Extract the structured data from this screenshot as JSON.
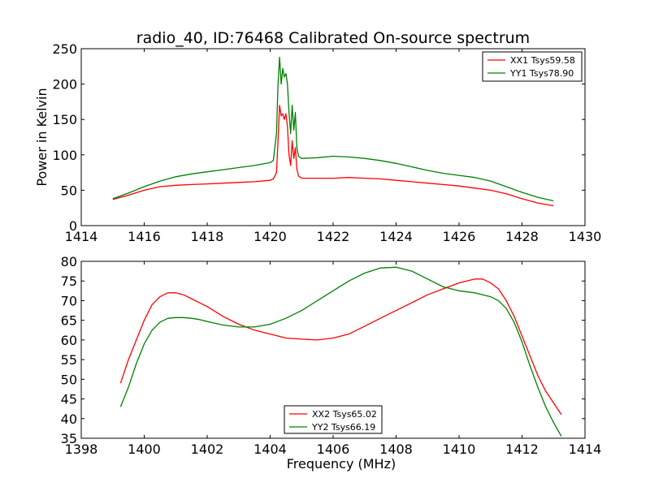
{
  "title": "radio_40, ID:76468 Calibrated On-source spectrum",
  "chart_data": [
    {
      "type": "line",
      "title": "radio_40, ID:76468 Calibrated On-source spectrum",
      "xlabel": "",
      "ylabel": "Power in Kelvin",
      "xlim": [
        1414,
        1430
      ],
      "ylim": [
        0,
        250
      ],
      "xticks": [
        1414,
        1416,
        1418,
        1420,
        1422,
        1424,
        1426,
        1428,
        1430
      ],
      "yticks": [
        0,
        50,
        100,
        150,
        200,
        250
      ],
      "grid": false,
      "legend_position": "upper right",
      "series": [
        {
          "name": "XX1 Tsys59.58",
          "color": "#ff0000",
          "x": [
            1415.0,
            1415.5,
            1416.0,
            1416.5,
            1417.0,
            1417.5,
            1418.0,
            1418.5,
            1419.0,
            1419.5,
            1420.0,
            1420.1,
            1420.2,
            1420.25,
            1420.3,
            1420.35,
            1420.4,
            1420.45,
            1420.5,
            1420.55,
            1420.6,
            1420.65,
            1420.7,
            1420.75,
            1420.8,
            1420.85,
            1420.9,
            1421.0,
            1421.5,
            1422.0,
            1422.5,
            1423.0,
            1423.5,
            1424.0,
            1424.5,
            1425.0,
            1425.5,
            1426.0,
            1426.5,
            1427.0,
            1427.5,
            1428.0,
            1428.5,
            1429.0
          ],
          "y": [
            37,
            43,
            50,
            55,
            57,
            58,
            59,
            60,
            61,
            62,
            64,
            66,
            75,
            120,
            170,
            155,
            158,
            150,
            158,
            140,
            100,
            85,
            120,
            95,
            110,
            80,
            70,
            67,
            67,
            67,
            68,
            67,
            66,
            64,
            62,
            60,
            58,
            56,
            53,
            50,
            45,
            38,
            32,
            28
          ]
        },
        {
          "name": "YY1 Tsys78.90",
          "color": "#008000",
          "x": [
            1415.0,
            1415.5,
            1416.0,
            1416.5,
            1417.0,
            1417.5,
            1418.0,
            1418.5,
            1419.0,
            1419.5,
            1420.0,
            1420.1,
            1420.2,
            1420.25,
            1420.3,
            1420.35,
            1420.4,
            1420.45,
            1420.5,
            1420.55,
            1420.6,
            1420.65,
            1420.7,
            1420.75,
            1420.8,
            1420.85,
            1420.9,
            1421.0,
            1421.5,
            1422.0,
            1422.5,
            1423.0,
            1423.5,
            1424.0,
            1424.5,
            1425.0,
            1425.5,
            1426.0,
            1426.5,
            1427.0,
            1427.5,
            1428.0,
            1428.5,
            1429.0
          ],
          "y": [
            38,
            46,
            55,
            63,
            69,
            73,
            76,
            79,
            82,
            85,
            89,
            92,
            130,
            200,
            238,
            200,
            222,
            210,
            215,
            200,
            160,
            130,
            170,
            135,
            160,
            110,
            98,
            95,
            96,
            98,
            97,
            95,
            92,
            88,
            83,
            78,
            74,
            71,
            68,
            63,
            55,
            47,
            40,
            35
          ]
        }
      ]
    },
    {
      "type": "line",
      "title": "",
      "xlabel": "Frequency (MHz)",
      "ylabel": "",
      "xlim": [
        1398,
        1414
      ],
      "ylim": [
        35,
        80
      ],
      "xticks": [
        1398,
        1400,
        1402,
        1404,
        1406,
        1408,
        1410,
        1412,
        1414
      ],
      "yticks": [
        35,
        40,
        45,
        50,
        55,
        60,
        65,
        70,
        75,
        80
      ],
      "grid": false,
      "legend_position": "lower center",
      "series": [
        {
          "name": "XX2 Tsys65.02",
          "color": "#ff0000",
          "x": [
            1399.25,
            1399.5,
            1399.75,
            1400.0,
            1400.25,
            1400.5,
            1400.75,
            1401.0,
            1401.25,
            1401.5,
            1401.75,
            1402.0,
            1402.5,
            1403.0,
            1403.5,
            1404.0,
            1404.5,
            1405.0,
            1405.5,
            1406.0,
            1406.5,
            1407.0,
            1407.5,
            1408.0,
            1408.5,
            1409.0,
            1409.5,
            1410.0,
            1410.5,
            1410.75,
            1411.0,
            1411.25,
            1411.5,
            1411.75,
            1412.0,
            1412.25,
            1412.5,
            1412.75,
            1413.0,
            1413.25
          ],
          "y": [
            49,
            55,
            60,
            65,
            69,
            71,
            72,
            72,
            71.5,
            70.5,
            69.5,
            68.5,
            66,
            64,
            62.5,
            61.5,
            60.5,
            60.2,
            60,
            60.5,
            61.5,
            63.5,
            65.5,
            67.5,
            69.5,
            71.5,
            73,
            74.5,
            75.5,
            75.5,
            74.5,
            73,
            70,
            66,
            61,
            56,
            51,
            47,
            44,
            41
          ]
        },
        {
          "name": "YY2 Tsys66.19",
          "color": "#008000",
          "x": [
            1399.25,
            1399.5,
            1399.75,
            1400.0,
            1400.25,
            1400.5,
            1400.75,
            1401.0,
            1401.25,
            1401.5,
            1401.75,
            1402.0,
            1402.5,
            1403.0,
            1403.5,
            1404.0,
            1404.5,
            1405.0,
            1405.5,
            1406.0,
            1406.5,
            1407.0,
            1407.5,
            1408.0,
            1408.5,
            1409.0,
            1409.5,
            1410.0,
            1410.5,
            1410.75,
            1411.0,
            1411.25,
            1411.5,
            1411.75,
            1412.0,
            1412.25,
            1412.5,
            1412.75,
            1413.0,
            1413.25
          ],
          "y": [
            43,
            48,
            54,
            59,
            62.5,
            64.5,
            65.5,
            65.7,
            65.7,
            65.5,
            65.2,
            64.7,
            63.8,
            63.3,
            63.3,
            64,
            65.5,
            67.5,
            70,
            72.5,
            75,
            77,
            78.3,
            78.5,
            77.5,
            75.5,
            73.5,
            72.5,
            72,
            71.5,
            71,
            70,
            68,
            64.5,
            59.5,
            53.5,
            48,
            43,
            39,
            35.5
          ]
        }
      ]
    }
  ]
}
